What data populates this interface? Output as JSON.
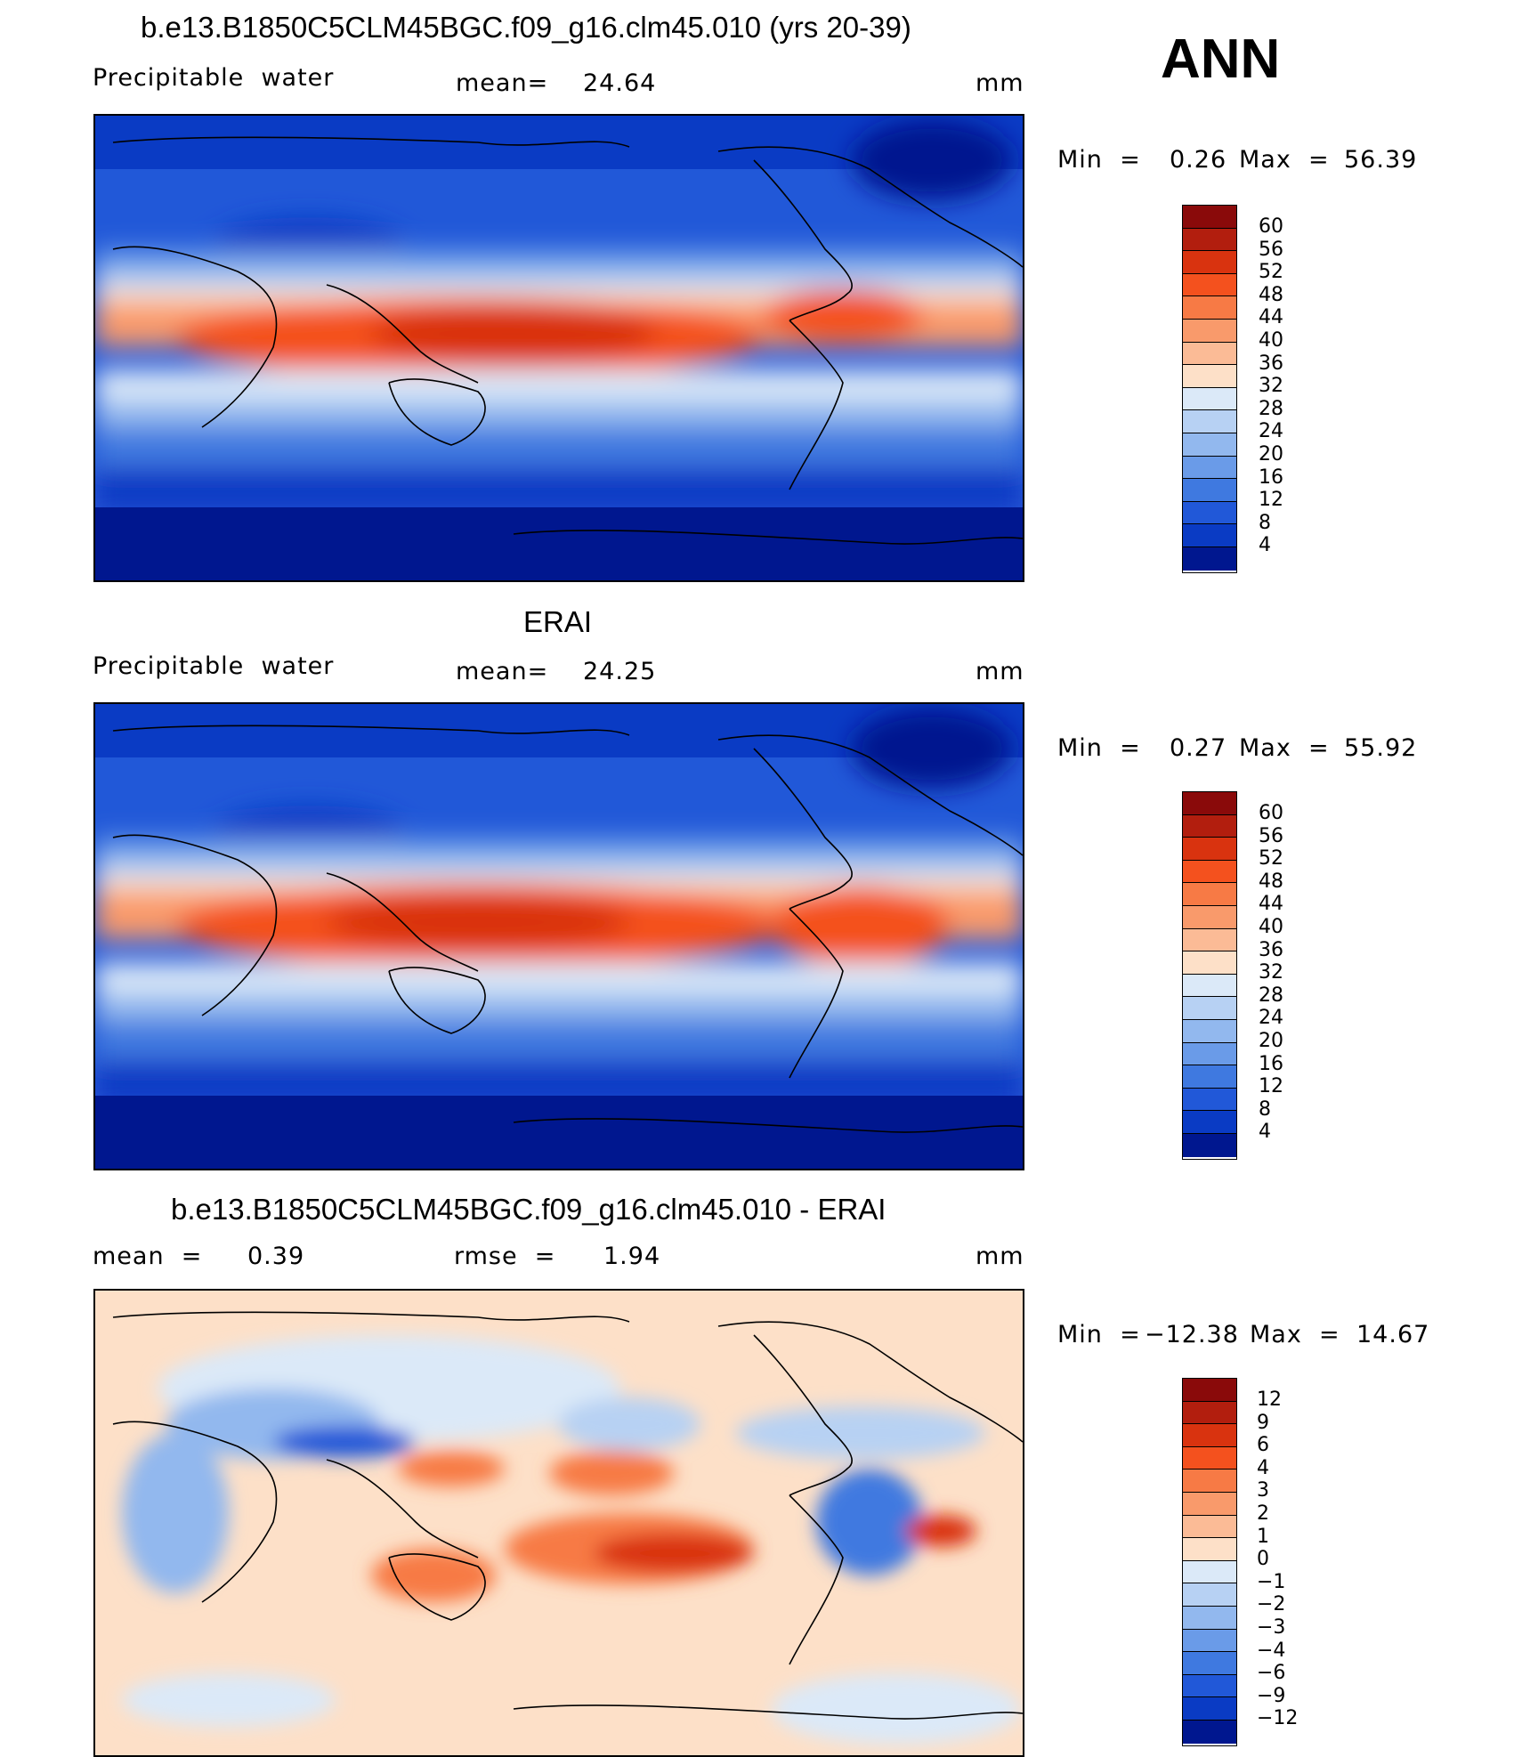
{
  "anchor": {
    "season": "ANN"
  },
  "panel1": {
    "title": "b.e13.B1850C5CLM45BGC.f09_g16.clm45.010 (yrs 20-39)",
    "variable": "Precipitable  water",
    "mean_label": "mean=",
    "mean_value": "24.64",
    "units": "mm",
    "min_label": "Min  =",
    "min_value": "0.26",
    "max_label": "Max  =",
    "max_value": "56.39"
  },
  "panel2": {
    "title": "ERAI",
    "variable": "Precipitable  water",
    "mean_label": "mean=",
    "mean_value": "24.25",
    "units": "mm",
    "min_label": "Min  =",
    "min_value": "0.27",
    "max_label": "Max  =",
    "max_value": "55.92"
  },
  "panel3": {
    "title": "b.e13.B1850C5CLM45BGC.f09_g16.clm45.010 - ERAI",
    "mean_label": "mean  =",
    "mean_value": "0.39",
    "rmse_label": "rmse  =",
    "rmse_value": "1.94",
    "units": "mm",
    "min_label": "Min  =",
    "min_value": "−12.38",
    "max_label": "Max  =",
    "max_value": "14.67"
  },
  "colorbar_abs": {
    "labels": [
      "60",
      "56",
      "52",
      "48",
      "44",
      "40",
      "36",
      "32",
      "28",
      "24",
      "20",
      "16",
      "12",
      "8",
      "4"
    ],
    "colors": [
      "#8a0a0a",
      "#b21e0e",
      "#d9330f",
      "#f4511e",
      "#f77a45",
      "#f99a6b",
      "#fbbb96",
      "#fde0c8",
      "#dbe9f8",
      "#b7d1f3",
      "#92b8ee",
      "#6a9be8",
      "#3f79e0",
      "#2158d8",
      "#0a3bc4",
      "#00178f"
    ]
  },
  "colorbar_diff": {
    "labels": [
      "12",
      "9",
      "6",
      "4",
      "3",
      "2",
      "1",
      "0",
      "−1",
      "−2",
      "−3",
      "−4",
      "−6",
      "−9",
      "−12"
    ],
    "colors": [
      "#8a0a0a",
      "#b21e0e",
      "#d9330f",
      "#f4511e",
      "#f77a45",
      "#f99a6b",
      "#fbbb96",
      "#fde0c8",
      "#dbe9f8",
      "#b7d1f3",
      "#92b8ee",
      "#6a9be8",
      "#3f79e0",
      "#2158d8",
      "#0a3bc4",
      "#00178f"
    ]
  }
}
